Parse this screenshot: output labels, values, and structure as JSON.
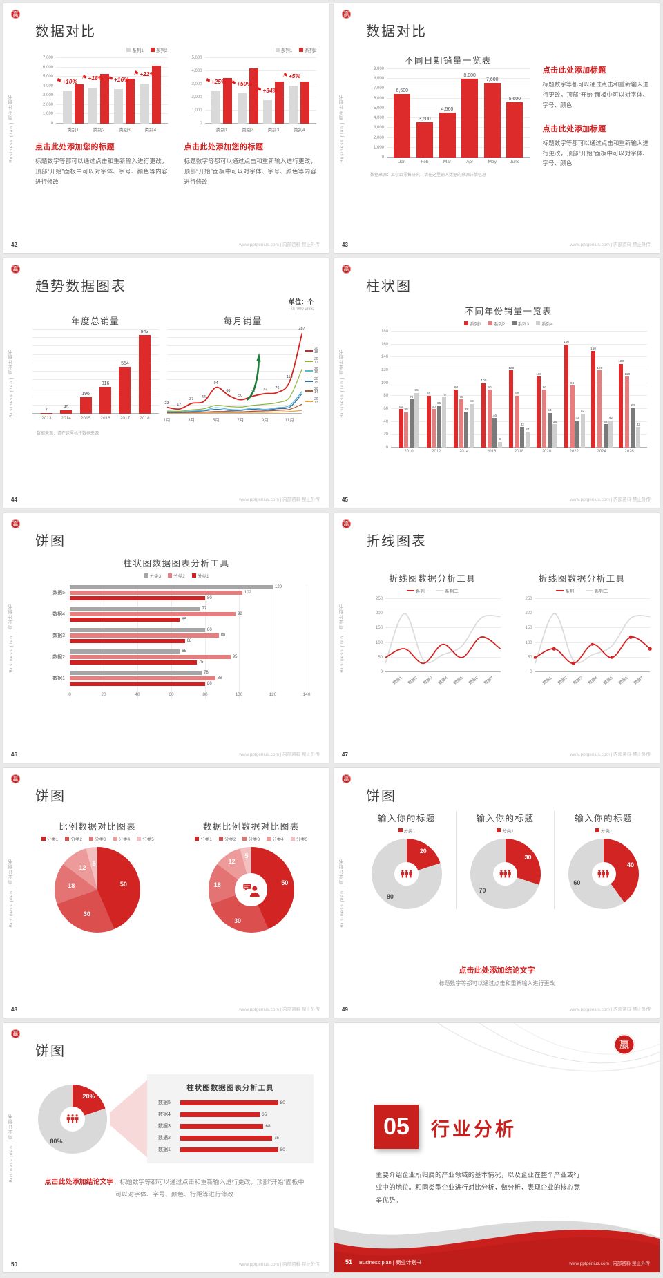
{
  "footer_site": "www.pptgenius.com | 内部资料 禁止外传",
  "sidebar_text": "Business plan | 商业计划书",
  "logo_char": "赢",
  "colors": {
    "brand_red": "#c9201d",
    "bar_red": "#d32424",
    "bar_light_red": "#e87d7d",
    "bar_gray": "#d9d9d9",
    "bar_dark_gray": "#7a7a7a",
    "annotation_red": "#e31818"
  },
  "slides": {
    "s42": {
      "page": "42",
      "title": "数据对比",
      "heading": "点击此处添加您的标题",
      "body": "标题数字等都可以通过点击和重新输入进行更改，顶部“开始”面板中可以对字体、字号、颜色等内容进行修改"
    },
    "s43": {
      "page": "43",
      "title": "数据对比",
      "heading": "点击此处添加标题",
      "body": "标题数字等都可以通过点击和重新输入进行更改，顶部“开始”面板中可以对字体、字号、颜色",
      "note": "数据来源：尼尔森零售研究，请在这里输入数据的来源详情信息"
    },
    "s44": {
      "page": "44",
      "title": "趋势数据图表",
      "unit": "单位：个",
      "unit_sub": "in '000 units",
      "note": "数据来源：请在这里标注数据来源"
    },
    "s45": {
      "page": "45",
      "title": "柱状图"
    },
    "s46": {
      "page": "46",
      "title": "饼图"
    },
    "s47": {
      "page": "47",
      "title": "折线图表"
    },
    "s48": {
      "page": "48",
      "title": "饼图"
    },
    "s49": {
      "page": "49",
      "title": "饼图",
      "conclusion": "点击此处添加结论文字",
      "conclusion_sub": "标题数字等都可以通过点击和重新输入进行更改"
    },
    "s50": {
      "page": "50",
      "title": "饼图",
      "conclusion": "点击此处添加结论文字",
      "conclusion_sub": "，标题数字等都可以通过点击和重新输入进行更改，顶部“开始”面板中可以对字体、字号、颜色、行距等进行修改"
    },
    "s51": {
      "page": "51",
      "number": "05",
      "title": "行业分析",
      "body": "主要介绍企业所归属的产业领域的基本情况，以及企业在整个产业或行业中的地位。和同类型企业进行对比分析，做分析，表现企业的核心竞争优势。",
      "band": "Business plan | 商业计划书"
    }
  },
  "chart_data": [
    {
      "id": "c42a",
      "type": "bar",
      "legend_pos": "top-right",
      "ylim": [
        0,
        7000
      ],
      "ytick": 1000,
      "fmt": "k",
      "categories": [
        "类别1",
        "类别2",
        "类别3",
        "类别4"
      ],
      "series": [
        {
          "name": "系列1",
          "color": "#d9d9d9",
          "values": [
            3500,
            3800,
            3700,
            4300
          ]
        },
        {
          "name": "系列2",
          "color": "#dd2a2a",
          "values": [
            4200,
            5300,
            4800,
            6200
          ]
        }
      ],
      "annotations": [
        "+10%",
        "+18%",
        "+16%",
        "+22%"
      ]
    },
    {
      "id": "c42b",
      "type": "bar",
      "legend_pos": "top-right",
      "ylim": [
        0,
        5000
      ],
      "ytick": 1000,
      "fmt": "k",
      "categories": [
        "类别1",
        "类别2",
        "类别3",
        "类别4"
      ],
      "series": [
        {
          "name": "系列1",
          "color": "#d9d9d9",
          "values": [
            2500,
            2300,
            1800,
            2900
          ]
        },
        {
          "name": "系列2",
          "color": "#dd2a2a",
          "values": [
            3500,
            4200,
            3200,
            3200
          ]
        }
      ],
      "annotations": [
        "+25%",
        "+50%",
        "+34%",
        "+5%"
      ]
    },
    {
      "id": "c43",
      "type": "bar",
      "title": "不同日期销量一览表",
      "ylim": [
        0,
        9000
      ],
      "ytick": 1000,
      "fmt": "k",
      "cls": "mid",
      "categories": [
        "Jan",
        "Feb",
        "Mar",
        "Apr",
        "May",
        "June"
      ],
      "series": [
        {
          "name": "销量",
          "color": "#dd2a2a",
          "values": [
            6500,
            3600,
            4560,
            8000,
            7600,
            5600
          ],
          "labels": true
        }
      ]
    },
    {
      "id": "c44a",
      "type": "bar",
      "title": "年度总销量",
      "ylim": [
        0,
        1000
      ],
      "ytick": 100,
      "ylabels": false,
      "cls": "mid",
      "categories": [
        "2013",
        "2014",
        "2015",
        "2016",
        "2017",
        "2018"
      ],
      "series": [
        {
          "name": "年度总销量",
          "color": "#dd2a2a",
          "values": [
            7,
            45,
            196,
            316,
            554,
            943
          ],
          "labels": true
        }
      ]
    },
    {
      "id": "c44b",
      "type": "line",
      "title": "每月销量",
      "ylim": [
        0,
        300
      ],
      "gridn": 10,
      "xspan": 12,
      "arrow": true,
      "legend_side": true,
      "x": [
        "1月",
        "3月",
        "5月",
        "7月",
        "9月",
        "11月"
      ],
      "series": [
        {
          "name": "2018",
          "color": "#d32424",
          "w": 1.8,
          "values": [
            23,
            17,
            37,
            44,
            94,
            66,
            50,
            63,
            72,
            76,
            116,
            287
          ],
          "labels": true
        },
        {
          "name": "2017",
          "color": "#8db33a",
          "w": 1.2,
          "values": [
            10,
            9,
            14,
            18,
            30,
            26,
            24,
            30,
            34,
            40,
            60,
            160
          ]
        },
        {
          "name": "2016",
          "color": "#58b6d8",
          "w": 1.2,
          "values": [
            8,
            7,
            10,
            12,
            22,
            16,
            14,
            20,
            16,
            22,
            30,
            80
          ]
        },
        {
          "name": "2015",
          "color": "#2e6da4",
          "w": 1.2,
          "values": [
            6,
            6,
            8,
            10,
            16,
            12,
            12,
            16,
            13,
            18,
            24,
            72
          ]
        },
        {
          "name": "2014",
          "color": "#b4532a",
          "w": 1.2,
          "values": [
            4,
            4,
            5,
            6,
            8,
            8,
            7,
            9,
            10,
            12,
            16,
            34
          ]
        },
        {
          "name": "2013",
          "color": "#e8a33d",
          "w": 1.2,
          "values": [
            2,
            2,
            3,
            3,
            4,
            4,
            4,
            5,
            5,
            6,
            8,
            12
          ]
        }
      ]
    },
    {
      "id": "c45",
      "type": "bar",
      "title": "不同年份销量一览表",
      "legend_pos": "top-center",
      "ylim": [
        0,
        180
      ],
      "ytick": 20,
      "cls": "tiny",
      "categories": [
        "2010",
        "2012",
        "2014",
        "2016",
        "2018",
        "2020",
        "2022",
        "2024",
        "2026"
      ],
      "series": [
        {
          "name": "系列1",
          "color": "#dd2a2a",
          "values": [
            60,
            80,
            90,
            100,
            120,
            110,
            160,
            150,
            130
          ],
          "labels": true
        },
        {
          "name": "系列2",
          "color": "#e87d7d",
          "values": [
            55,
            60,
            75,
            90,
            80,
            90,
            96,
            120,
            110
          ],
          "labels": true
        },
        {
          "name": "系列3",
          "color": "#7a7a7a",
          "values": [
            75,
            65,
            56,
            46,
            32,
            54,
            42,
            36,
            62
          ],
          "labels": true
        },
        {
          "name": "系列4",
          "color": "#cfcfcf",
          "values": [
            85,
            78,
            68,
            9,
            24,
            36,
            53,
            42,
            32
          ],
          "labels": true
        }
      ]
    },
    {
      "id": "c46",
      "type": "hbar",
      "title": "柱状图数据图表分析工具",
      "xlim": [
        0,
        140
      ],
      "xtick": 20,
      "categories": [
        "数据5",
        "数据4",
        "数据3",
        "数据2",
        "数据1"
      ],
      "series": [
        {
          "name": "分类3",
          "color": "#a6a6a6",
          "values": [
            120,
            77,
            80,
            65,
            78
          ]
        },
        {
          "name": "分类2",
          "color": "#e87d7d",
          "values": [
            102,
            98,
            88,
            95,
            86
          ]
        },
        {
          "name": "分类1",
          "color": "#cf2222",
          "values": [
            80,
            65,
            68,
            75,
            80
          ]
        }
      ]
    },
    {
      "id": "c47a",
      "type": "line",
      "title": "折线图数据分析工具",
      "ylim": [
        0,
        250
      ],
      "ytick": 50,
      "gridn": 5,
      "xrot": true,
      "x": [
        "数据1",
        "数据2",
        "数据3",
        "数据4",
        "数据5",
        "数据6",
        "数据7"
      ],
      "series": [
        {
          "name": "系列一",
          "color": "#d32424",
          "w": 1.8,
          "values": [
            50,
            80,
            30,
            95,
            50,
            120,
            80
          ]
        },
        {
          "name": "系列二",
          "color": "#dcdcdc",
          "w": 1.8,
          "values": [
            30,
            200,
            40,
            60,
            90,
            185,
            190
          ]
        }
      ]
    },
    {
      "id": "c47b",
      "type": "line",
      "title": "折线图数据分析工具",
      "ylim": [
        0,
        250
      ],
      "ytick": 50,
      "gridn": 5,
      "xrot": true,
      "x": [
        "数据1",
        "数据2",
        "数据3",
        "数据4",
        "数据5",
        "数据6",
        "数据7"
      ],
      "series": [
        {
          "name": "系列一",
          "color": "#d32424",
          "w": 1.8,
          "dots": true,
          "values": [
            50,
            80,
            30,
            95,
            50,
            120,
            80
          ]
        },
        {
          "name": "系列二",
          "color": "#dcdcdc",
          "w": 1.8,
          "values": [
            30,
            200,
            40,
            60,
            90,
            185,
            190
          ]
        }
      ]
    },
    {
      "id": "c48a",
      "type": "pie",
      "title": "比例数据对比图表",
      "labels": [
        "分类1",
        "分类2",
        "分类3",
        "分类4",
        "分类5"
      ],
      "values": [
        50,
        30,
        18,
        12,
        5
      ],
      "colors": [
        "#d32424",
        "#dc4f4f",
        "#e47474",
        "#ec9a9a",
        "#f4bfbf"
      ],
      "label_colors": [
        "#fff",
        "#fff",
        "#fff",
        "#fff",
        "#fff"
      ]
    },
    {
      "id": "c48b",
      "type": "donut",
      "title": "数据比例数据对比图表",
      "hole": "31%",
      "icon": "person",
      "labels": [
        "分类1",
        "分类2",
        "分类3",
        "分类4",
        "分类5"
      ],
      "values": [
        50,
        30,
        18,
        12,
        5
      ],
      "colors": [
        "#d32424",
        "#dc4f4f",
        "#e47474",
        "#ec9a9a",
        "#f4bfbf"
      ],
      "label_colors": [
        "#fff",
        "#fff",
        "#fff",
        "#fff",
        "#fff"
      ]
    },
    {
      "id": "c49a",
      "type": "donut",
      "title": "输入你的标题",
      "hole": "33%",
      "icon": "people",
      "labels": [
        "分类1"
      ],
      "values": [
        20,
        80
      ],
      "colors": [
        "#d32424",
        "#d9d9d9"
      ],
      "slice_labels": [
        "20",
        "80"
      ],
      "label_colors": [
        "#fff",
        "#4a4a4a"
      ]
    },
    {
      "id": "c49b",
      "type": "donut",
      "title": "输入你的标题",
      "hole": "33%",
      "icon": "people",
      "labels": [
        "分类1"
      ],
      "values": [
        30,
        70
      ],
      "colors": [
        "#d32424",
        "#d9d9d9"
      ],
      "slice_labels": [
        "30",
        "70"
      ],
      "label_colors": [
        "#fff",
        "#4a4a4a"
      ]
    },
    {
      "id": "c49c",
      "type": "donut",
      "title": "输入你的标题",
      "hole": "33%",
      "icon": "people",
      "labels": [
        "分类1"
      ],
      "values": [
        40,
        60
      ],
      "colors": [
        "#d32424",
        "#d9d9d9"
      ],
      "slice_labels": [
        "40",
        "60"
      ],
      "label_colors": [
        "#fff",
        "#4a4a4a"
      ]
    },
    {
      "id": "c50a",
      "type": "donut",
      "hole": "32%",
      "icon": "people",
      "values": [
        20,
        80
      ],
      "colors": [
        "#d32424",
        "#d9d9d9"
      ],
      "slice_labels": [
        "20%",
        "80%"
      ],
      "label_colors": [
        "#fff",
        "#4a4a4a"
      ]
    },
    {
      "id": "c50b",
      "type": "rows",
      "title": "柱状图数据图表分析工具",
      "max": 100,
      "color": "#d32424",
      "categories": [
        "数据5",
        "数据4",
        "数据3",
        "数据2",
        "数据1"
      ],
      "values": [
        80,
        65,
        68,
        75,
        80
      ]
    }
  ]
}
